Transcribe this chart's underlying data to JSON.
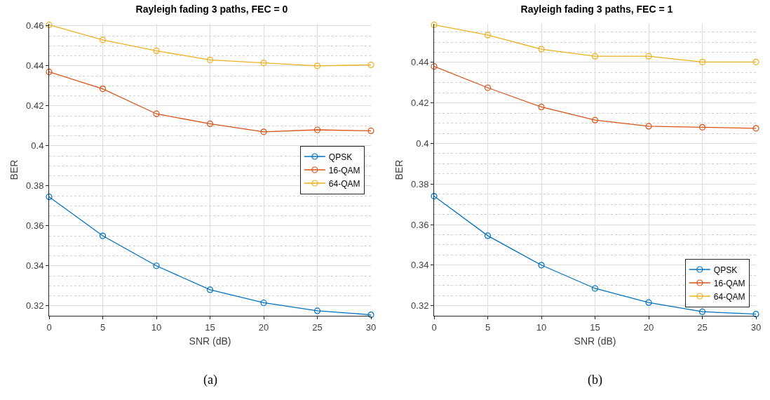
{
  "chart_data": [
    {
      "type": "line",
      "title": "Rayleigh fading 3 paths, FEC = 0",
      "xlabel": "SNR (dB)",
      "ylabel": "BER",
      "x": [
        0,
        5,
        10,
        15,
        20,
        25,
        30
      ],
      "xlim": [
        0,
        30
      ],
      "xticks": [
        0,
        5,
        10,
        15,
        20,
        25,
        30
      ],
      "ylim": [
        0.315,
        0.461
      ],
      "yticks": [
        0.32,
        0.34,
        0.36,
        0.38,
        0.4,
        0.42,
        0.44,
        0.46
      ],
      "grid": true,
      "legend": "right",
      "marker": "circle",
      "line_style": "solid",
      "annotations": [
        "(a)"
      ],
      "series": [
        {
          "name": "QPSK",
          "color": "#0072bd",
          "values": [
            0.3745,
            0.355,
            0.34,
            0.328,
            0.3215,
            0.3175,
            0.3155
          ]
        },
        {
          "name": "16-QAM",
          "color": "#d95319",
          "values": [
            0.437,
            0.4285,
            0.416,
            0.411,
            0.407,
            0.408,
            0.4075
          ]
        },
        {
          "name": "64-QAM",
          "color": "#edb120",
          "values": [
            0.4605,
            0.453,
            0.4475,
            0.443,
            0.4415,
            0.44,
            0.4405
          ]
        }
      ]
    },
    {
      "type": "line",
      "title": "Rayleigh fading 3 paths, FEC = 1",
      "xlabel": "SNR (dB)",
      "ylabel": "BER",
      "x": [
        0,
        5,
        10,
        15,
        20,
        25,
        30
      ],
      "xlim": [
        0,
        30
      ],
      "xticks": [
        0,
        5,
        10,
        15,
        20,
        25,
        30
      ],
      "ylim": [
        0.315,
        0.459
      ],
      "yticks": [
        0.32,
        0.34,
        0.36,
        0.38,
        0.4,
        0.42,
        0.44
      ],
      "grid": true,
      "legend": "bottom right",
      "marker": "circle",
      "line_style": "solid",
      "annotations": [
        "(b)"
      ],
      "series": [
        {
          "name": "QPSK",
          "color": "#0072bd",
          "values": [
            0.374,
            0.3545,
            0.34,
            0.3285,
            0.3215,
            0.317,
            0.3158
          ]
        },
        {
          "name": "16-QAM",
          "color": "#d95319",
          "values": [
            0.438,
            0.4275,
            0.418,
            0.4115,
            0.4085,
            0.408,
            0.4075
          ]
        },
        {
          "name": "64-QAM",
          "color": "#edb120",
          "values": [
            0.4585,
            0.4535,
            0.4465,
            0.443,
            0.443,
            0.4402,
            0.4402
          ]
        }
      ]
    }
  ]
}
